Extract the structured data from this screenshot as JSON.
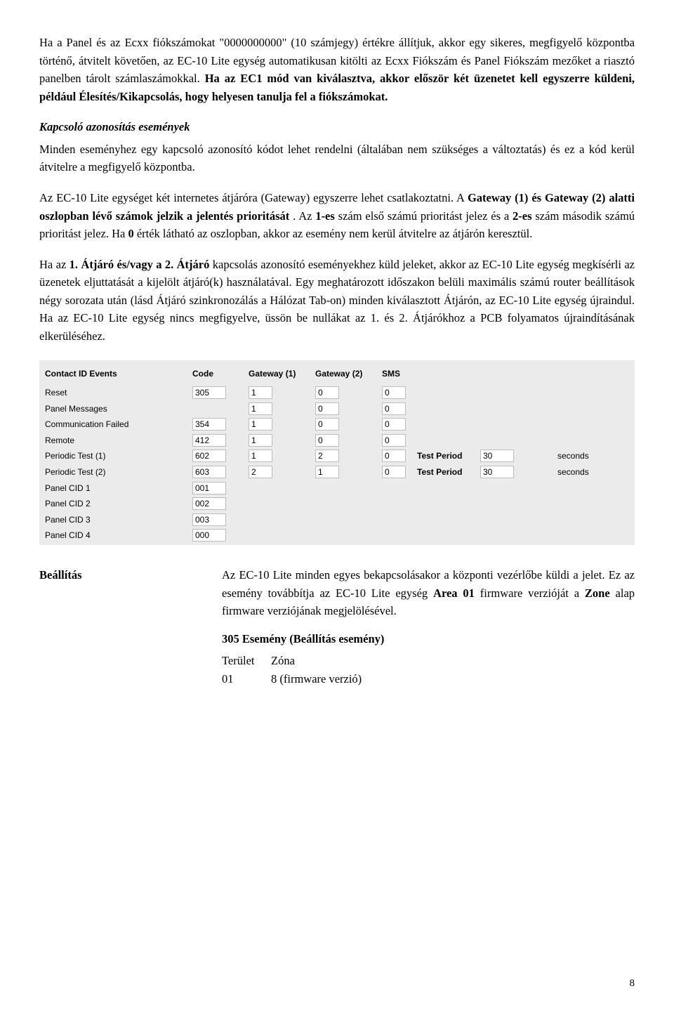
{
  "para1_a": "Ha a Panel és az Ecxx fiókszámokat \"0000000000\" (10 számjegy) értékre állítjuk, akkor egy sikeres, megfigyelő központba történő, átvitelt követően, az EC-10 Lite egység automatikusan kitölti az Ecxx Fiókszám és Panel Fiókszám mezőket a riasztó panelben tárolt számlaszámokkal. ",
  "para1_b": "Ha az EC1 mód van kiválasztva, akkor először két üzenetet kell egyszerre küldeni, például Élesítés/Kikapcsolás, hogy helyesen tanulja fel a fiókszámokat.",
  "para2_heading": "Kapcsoló azonosítás események",
  "para2": "Minden eseményhez egy kapcsoló azonosító kódot lehet rendelni (általában nem szükséges a változtatás) és ez a kód kerül átvitelre a megfigyelő központba.",
  "para3_a": "Az EC-10 Lite egységet két internetes átjáróra (Gateway) egyszerre lehet csatlakoztatni. A ",
  "para3_b": "Gateway (1) és Gateway (2) alatti oszlopban lévő számok jelzik a jelentés prioritását",
  "para3_c": ". Az ",
  "para3_d": "1-es",
  "para3_e": " szám első számú prioritást jelez és a ",
  "para3_f": "2-es",
  "para3_g": " szám második számú prioritást jelez. Ha ",
  "para3_h": "0",
  "para3_i": " érték látható az oszlopban, akkor az esemény nem kerül átvitelre az átjárón keresztül.",
  "para4_a": "Ha az ",
  "para4_b": "1. Átjáró és/vagy a 2. Átjáró",
  "para4_c": " kapcsolás azonosító eseményekhez küld jeleket, akkor az EC-10 Lite egység megkísérli az üzenetek eljuttatását a kijelölt átjáró(k) használatával. Egy meghatározott időszakon belüli maximális számú router beállítások négy sorozata után (lásd Átjáró szinkronozálás a Hálózat Tab-on) minden kiválasztott Átjárón, az EC-10 Lite egység újraindul. Ha az EC-10 Lite egység nincs megfigyelve, üssön be nullákat az 1. és 2. Átjárókhoz a PCB folyamatos újraindításának elkerüléséhez.",
  "table": {
    "headers": {
      "c0": "Contact ID Events",
      "c1": "Code",
      "c2": "Gateway (1)",
      "c3": "Gateway (2)",
      "c4": "SMS",
      "c5": "",
      "c6": "",
      "c7": ""
    },
    "rows": [
      {
        "label": "Reset",
        "code": "305",
        "g1": "1",
        "g2": "0",
        "sms": "0",
        "extra_label": "",
        "extra_val": "",
        "extra_unit": ""
      },
      {
        "label": "Panel Messages",
        "code": "",
        "g1": "1",
        "g2": "0",
        "sms": "0",
        "extra_label": "",
        "extra_val": "",
        "extra_unit": ""
      },
      {
        "label": "Communication Failed",
        "code": "354",
        "g1": "1",
        "g2": "0",
        "sms": "0",
        "extra_label": "",
        "extra_val": "",
        "extra_unit": ""
      },
      {
        "label": "Remote",
        "code": "412",
        "g1": "1",
        "g2": "0",
        "sms": "0",
        "extra_label": "",
        "extra_val": "",
        "extra_unit": ""
      },
      {
        "label": "Periodic Test (1)",
        "code": "602",
        "g1": "1",
        "g2": "2",
        "sms": "0",
        "extra_label": "Test Period",
        "extra_val": "30",
        "extra_unit": "seconds"
      },
      {
        "label": "Periodic Test (2)",
        "code": "603",
        "g1": "2",
        "g2": "1",
        "sms": "0",
        "extra_label": "Test Period",
        "extra_val": "30",
        "extra_unit": "seconds"
      },
      {
        "label": "Panel CID 1",
        "code": "001",
        "g1": "",
        "g2": "",
        "sms": "",
        "extra_label": "",
        "extra_val": "",
        "extra_unit": ""
      },
      {
        "label": "Panel CID 2",
        "code": "002",
        "g1": "",
        "g2": "",
        "sms": "",
        "extra_label": "",
        "extra_val": "",
        "extra_unit": ""
      },
      {
        "label": "Panel CID 3",
        "code": "003",
        "g1": "",
        "g2": "",
        "sms": "",
        "extra_label": "",
        "extra_val": "",
        "extra_unit": ""
      },
      {
        "label": "Panel CID 4",
        "code": "000",
        "g1": "",
        "g2": "",
        "sms": "",
        "extra_label": "",
        "extra_val": "",
        "extra_unit": ""
      }
    ]
  },
  "def_term": "Beállítás",
  "def_body_a": "Az EC-10 Lite minden egyes bekapcsolásakor a központi vezérlőbe küldi a jelet. Ez az esemény továbbítja az EC-10 Lite egység ",
  "def_body_b": "Area 01",
  "def_body_c": " firmware verzióját a ",
  "def_body_d": "Zone",
  "def_body_e": " alap firmware verziójának megjelölésével.",
  "event_heading": "305 Esemény (Beállítás esemény)",
  "event_col_a": "Terület",
  "event_col_b": "Zóna",
  "event_row_a": "01",
  "event_row_b": "8 (firmware verzió)",
  "page_number": "8"
}
